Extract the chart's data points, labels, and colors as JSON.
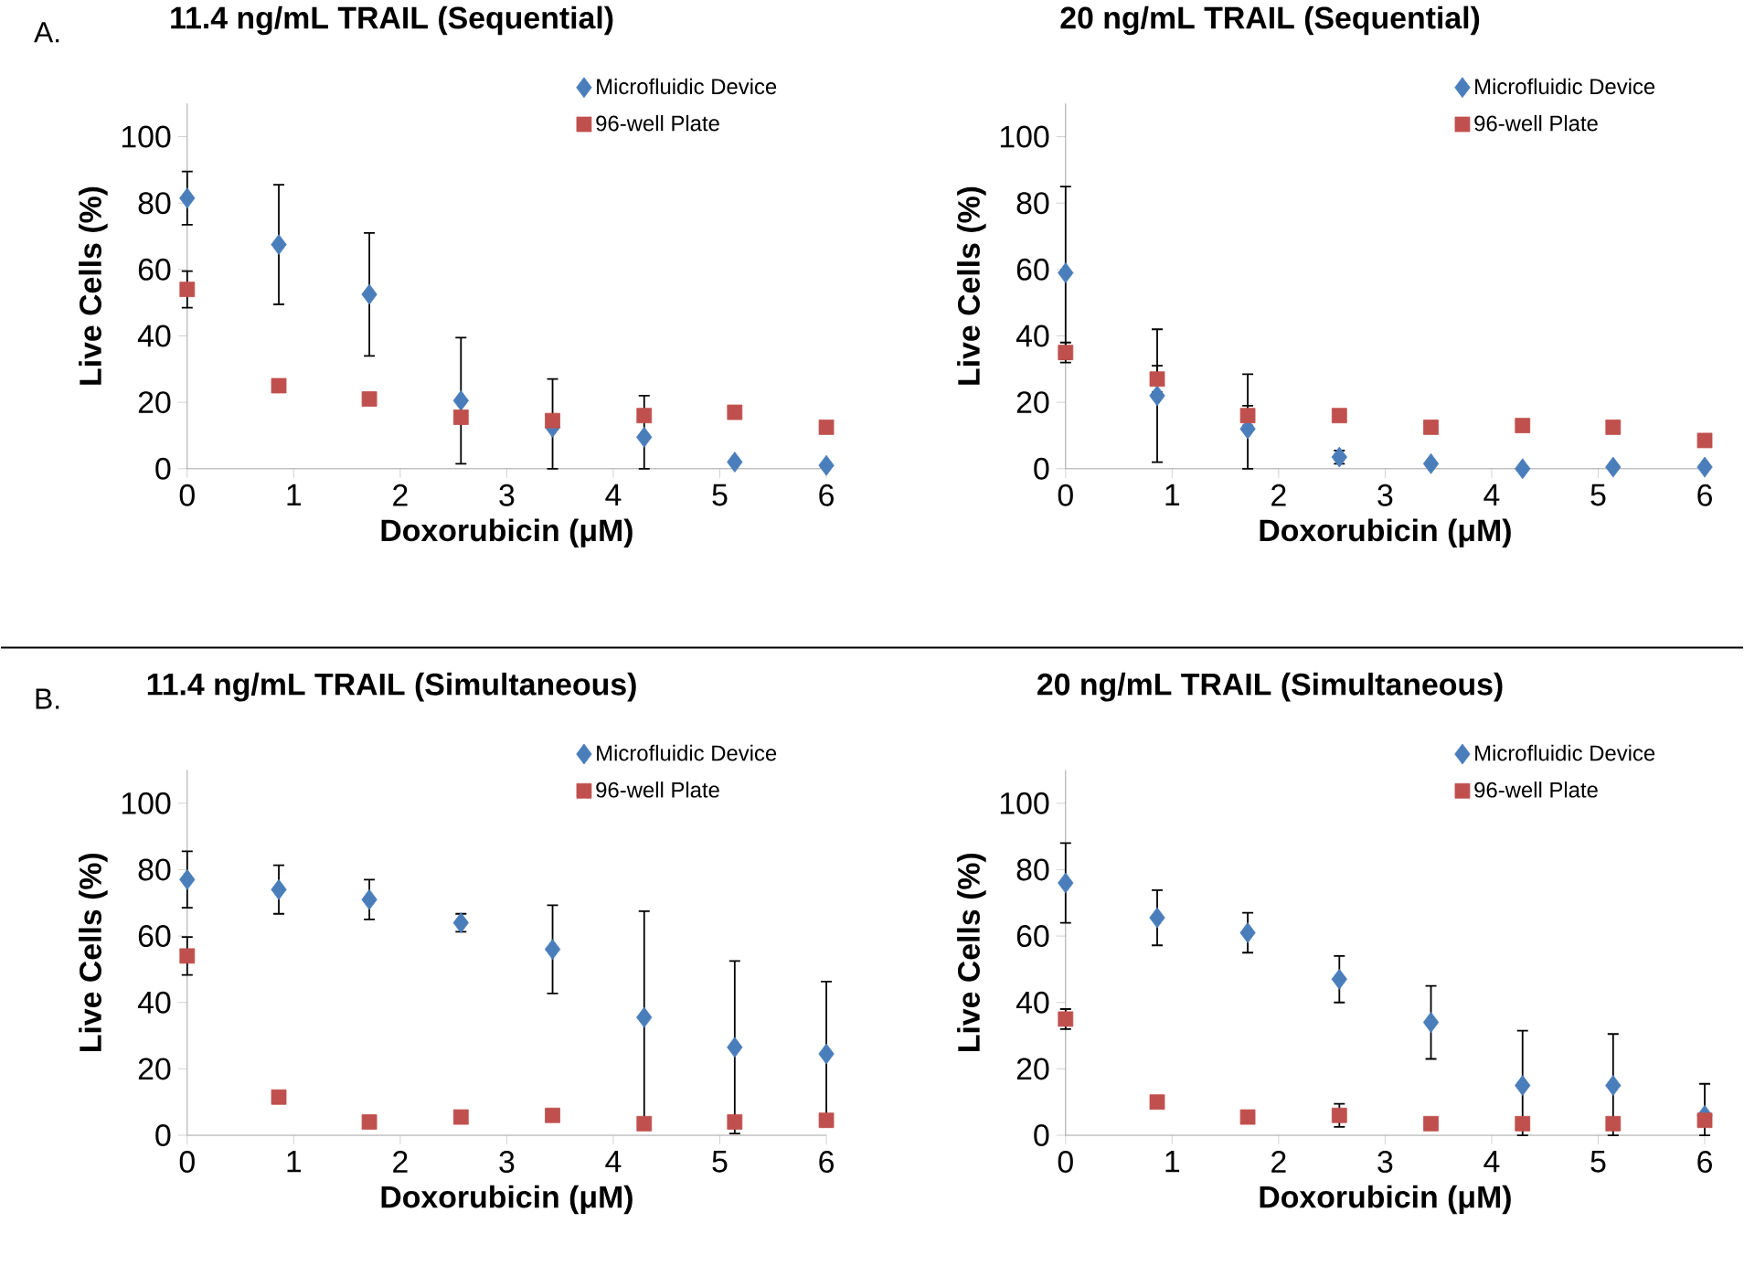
{
  "chart_data": [
    {
      "type": "scatter",
      "title": "11.4 ng/mL TRAIL (Sequential)",
      "xlabel": "Doxorubicin (μM)",
      "ylabel": "Live Cells (%)",
      "annotations": [
        "A."
      ],
      "xlim": [
        0,
        6
      ],
      "ylim": [
        0,
        110
      ],
      "xticks": [
        0,
        1,
        2,
        3,
        4,
        5,
        6
      ],
      "yticks": [
        0,
        20,
        40,
        60,
        80,
        100
      ],
      "grid": false,
      "legend": "top right",
      "series": [
        {
          "name": "Microfluidic Device",
          "color": "#4a7ebb",
          "marker": "diamond",
          "x": [
            0,
            0.86,
            1.71,
            2.57,
            3.43,
            4.29,
            5.14,
            6
          ],
          "values": [
            81.5,
            67.5,
            52.5,
            20.5,
            12.5,
            9.5,
            2,
            1
          ],
          "errors": [
            8,
            18,
            18.5,
            19,
            [
              0,
              27
            ],
            [
              0,
              22
            ],
            null,
            null
          ]
        },
        {
          "name": "96-well Plate",
          "color": "#c0504d",
          "marker": "square",
          "x": [
            0,
            0.86,
            1.71,
            2.57,
            3.43,
            4.29,
            5.14,
            6
          ],
          "values": [
            54,
            25,
            21,
            15.5,
            14.5,
            16,
            17,
            12.5
          ],
          "errors": [
            5.5,
            null,
            null,
            null,
            null,
            null,
            null,
            null
          ]
        }
      ]
    },
    {
      "type": "scatter",
      "title": "20 ng/mL TRAIL (Sequential)",
      "xlabel": "Doxorubicin (μM)",
      "ylabel": "Live Cells (%)",
      "xlim": [
        0,
        6
      ],
      "ylim": [
        0,
        110
      ],
      "xticks": [
        0,
        1,
        2,
        3,
        4,
        5,
        6
      ],
      "yticks": [
        0,
        20,
        40,
        60,
        80,
        100
      ],
      "grid": false,
      "legend": "top right",
      "series": [
        {
          "name": "Microfluidic Device",
          "color": "#4a7ebb",
          "marker": "diamond",
          "x": [
            0,
            0.86,
            1.71,
            2.57,
            3.43,
            4.29,
            5.14,
            6
          ],
          "values": [
            59,
            22,
            12,
            3.5,
            1.5,
            0,
            0.5,
            0.5
          ],
          "errors": [
            26,
            20,
            [
              0,
              28.5
            ],
            2,
            null,
            null,
            null,
            null
          ]
        },
        {
          "name": "96-well Plate",
          "color": "#c0504d",
          "marker": "square",
          "x": [
            0,
            0.86,
            1.71,
            2.57,
            3.43,
            4.29,
            5.14,
            6
          ],
          "values": [
            35,
            27,
            16,
            16,
            12.5,
            13,
            12.5,
            8.5
          ],
          "errors": [
            3,
            4,
            3,
            null,
            null,
            null,
            null,
            null
          ]
        }
      ]
    },
    {
      "type": "scatter",
      "title": "11.4 ng/mL TRAIL (Simultaneous)",
      "xlabel": "Doxorubicin (μM)",
      "ylabel": "Live Cells (%)",
      "annotations": [
        "B."
      ],
      "xlim": [
        0,
        6
      ],
      "ylim": [
        0,
        110
      ],
      "xticks": [
        0,
        1,
        2,
        3,
        4,
        5,
        6
      ],
      "yticks": [
        0,
        20,
        40,
        60,
        80,
        100
      ],
      "grid": false,
      "legend": "top right",
      "series": [
        {
          "name": "Microfluidic Device",
          "color": "#4a7ebb",
          "marker": "diamond",
          "x": [
            0,
            0.86,
            1.71,
            2.57,
            3.43,
            4.29,
            5.14,
            6
          ],
          "values": [
            77,
            74,
            71,
            64,
            56,
            35.5,
            26.5,
            24.5
          ],
          "errors": [
            8.5,
            7.3,
            6,
            2.7,
            13.3,
            32,
            26,
            21.8
          ]
        },
        {
          "name": "96-well Plate",
          "color": "#c0504d",
          "marker": "square",
          "x": [
            0,
            0.86,
            1.71,
            2.57,
            3.43,
            4.29,
            5.14,
            6
          ],
          "values": [
            54,
            11.5,
            4,
            5.5,
            6,
            3.5,
            4,
            4.5
          ],
          "errors": [
            5.7,
            null,
            null,
            null,
            null,
            null,
            null,
            null
          ]
        }
      ]
    },
    {
      "type": "scatter",
      "title": "20 ng/mL TRAIL (Simultaneous)",
      "xlabel": "Doxorubicin (μM)",
      "ylabel": "Live Cells (%)",
      "xlim": [
        0,
        6
      ],
      "ylim": [
        0,
        110
      ],
      "xticks": [
        0,
        1,
        2,
        3,
        4,
        5,
        6
      ],
      "yticks": [
        0,
        20,
        40,
        60,
        80,
        100
      ],
      "grid": false,
      "legend": "top right",
      "series": [
        {
          "name": "Microfluidic Device",
          "color": "#4a7ebb",
          "marker": "diamond",
          "x": [
            0,
            0.86,
            1.71,
            2.57,
            3.43,
            4.29,
            5.14,
            6
          ],
          "values": [
            76,
            65.5,
            61,
            47,
            34,
            15,
            15,
            6
          ],
          "errors": [
            12,
            8.3,
            6,
            7,
            11,
            [
              0,
              31.5
            ],
            [
              0,
              30.5
            ],
            [
              0,
              15.5
            ]
          ]
        },
        {
          "name": "96-well Plate",
          "color": "#c0504d",
          "marker": "square",
          "x": [
            0,
            0.86,
            1.71,
            2.57,
            3.43,
            4.29,
            5.14,
            6
          ],
          "values": [
            35,
            10,
            5.5,
            6,
            3.5,
            3.5,
            3.5,
            4.5
          ],
          "errors": [
            3,
            null,
            null,
            3.5,
            null,
            null,
            null,
            null
          ]
        }
      ]
    }
  ]
}
